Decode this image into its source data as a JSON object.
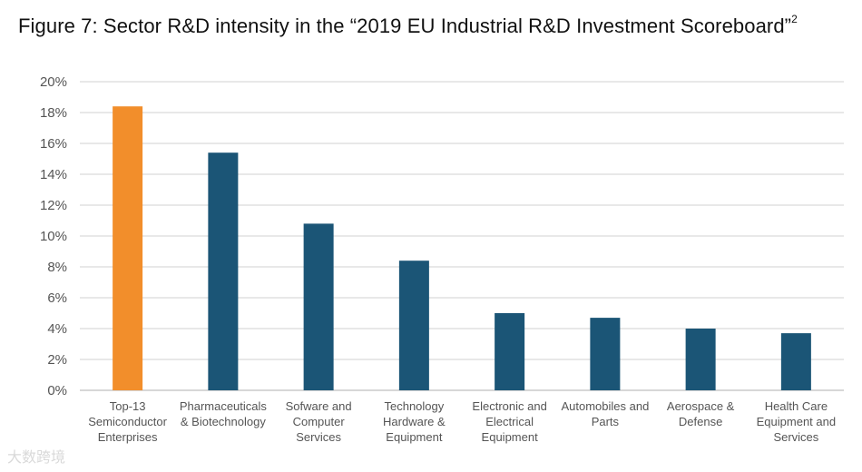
{
  "title": "Figure 7: Sector R&D intensity in the “2019 EU Industrial R&D Investment Scoreboard”",
  "title_footnote": "2",
  "watermark": "大数跨境",
  "chart_data": {
    "type": "bar",
    "title": "Figure 7: Sector R&D intensity in the “2019 EU Industrial R&D Investment Scoreboard”",
    "xlabel": "",
    "ylabel": "",
    "ylim": [
      0,
      20
    ],
    "yticks": [
      "0%",
      "2%",
      "4%",
      "6%",
      "8%",
      "10%",
      "12%",
      "14%",
      "16%",
      "18%",
      "20%"
    ],
    "grid": true,
    "legend": "none",
    "categories": [
      [
        "Top-13",
        "Semiconductor",
        "Enterprises"
      ],
      [
        "Pharmaceuticals",
        "& Biotechnology"
      ],
      [
        "Sofware and",
        "Computer",
        "Services"
      ],
      [
        "Technology",
        "Hardware &",
        "Equipment"
      ],
      [
        "Electronic and",
        "Electrical",
        "Equipment"
      ],
      [
        "Automobiles and",
        "Parts"
      ],
      [
        "Aerospace &",
        "Defense"
      ],
      [
        "Health Care",
        "Equipment and",
        "Services"
      ]
    ],
    "values": [
      18.4,
      15.4,
      10.8,
      8.4,
      5.0,
      4.7,
      4.0,
      3.7
    ],
    "colors": [
      "#f28e2b",
      "#1b5576",
      "#1b5576",
      "#1b5576",
      "#1b5576",
      "#1b5576",
      "#1b5576",
      "#1b5576"
    ],
    "gridline_color": "#d9d9d9"
  }
}
